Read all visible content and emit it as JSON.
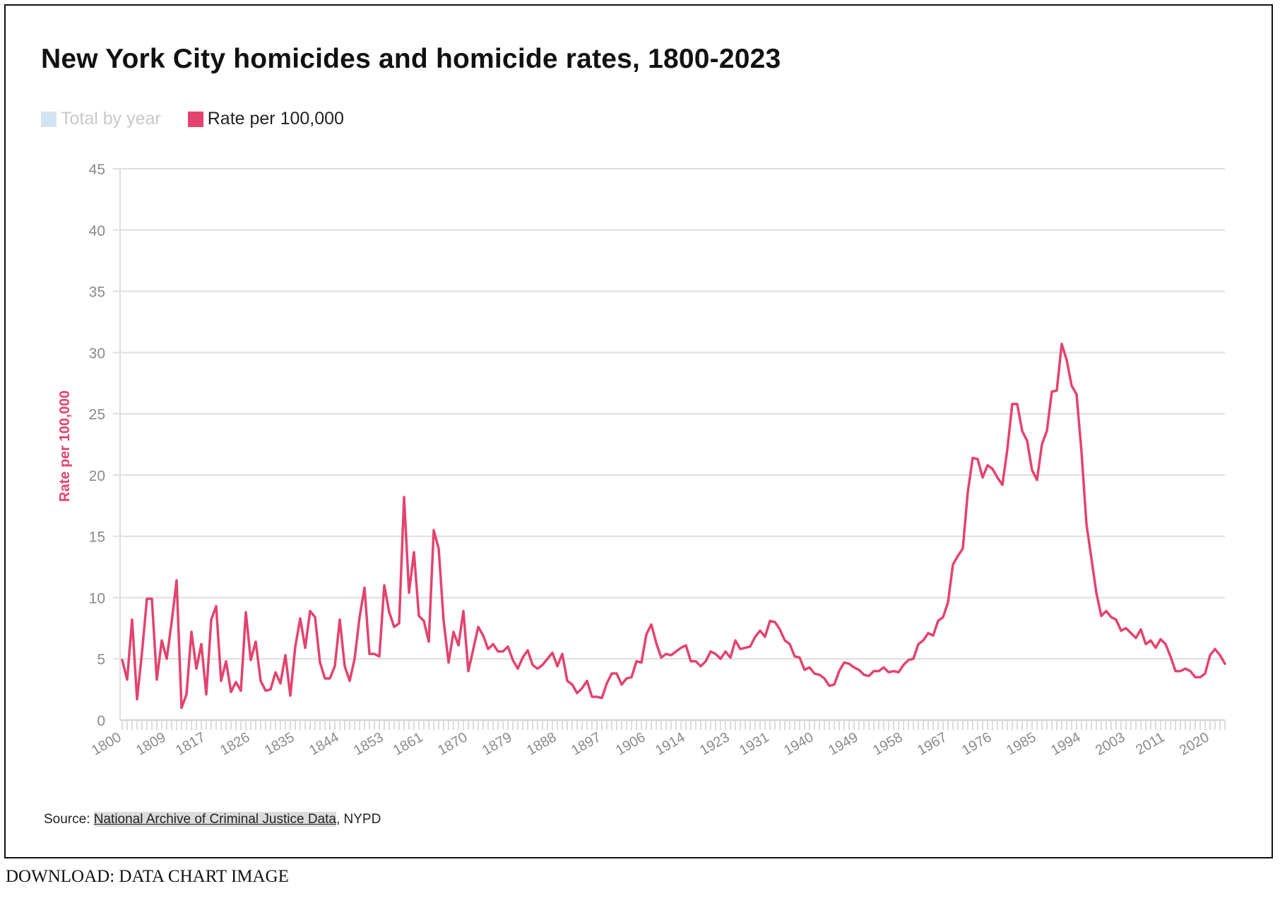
{
  "title": "New York City homicides and homicide rates, 1800-2023",
  "legend": {
    "items": [
      {
        "label": "Total by year",
        "color": "#d2e4f2",
        "active": false
      },
      {
        "label": "Rate per 100,000",
        "color": "#e3436e",
        "active": true
      }
    ]
  },
  "source": {
    "prefix": "Source: ",
    "link_text": "National Archive of Criminal Justice Data",
    "suffix": ", NYPD"
  },
  "download": {
    "label": "DOWNLOAD:",
    "data_link": "DATA",
    "chart_link": "CHART",
    "image_link": "IMAGE"
  },
  "chart_data": {
    "type": "line",
    "title": "New York City homicides and homicide rates, 1800-2023",
    "xlabel": "",
    "ylabel": "Rate per 100,000",
    "xlim": [
      1800,
      2023
    ],
    "ylim": [
      0,
      45
    ],
    "grid": true,
    "yticks": [
      0,
      5,
      10,
      15,
      20,
      25,
      30,
      35,
      40,
      45
    ],
    "xtick_labels": [
      "1800",
      "1809",
      "1817",
      "1826",
      "1835",
      "1844",
      "1853",
      "1861",
      "1870",
      "1879",
      "1888",
      "1897",
      "1906",
      "1914",
      "1923",
      "1931",
      "1940",
      "1949",
      "1958",
      "1967",
      "1976",
      "1985",
      "1994",
      "2003",
      "2011",
      "2020"
    ],
    "series": [
      {
        "name": "Rate per 100,000",
        "color": "#e3436e",
        "start_year": 1800,
        "values": [
          4.9,
          3.3,
          8.2,
          1.7,
          5.5,
          9.9,
          9.9,
          3.3,
          6.5,
          5.0,
          8.0,
          11.4,
          1.0,
          2.1,
          7.2,
          4.2,
          6.2,
          2.1,
          8.2,
          9.3,
          3.2,
          4.8,
          2.3,
          3.1,
          2.4,
          8.8,
          4.9,
          6.4,
          3.2,
          2.4,
          2.5,
          3.9,
          3.0,
          5.3,
          2.0,
          6.0,
          8.3,
          5.9,
          8.9,
          8.4,
          4.7,
          3.4,
          3.4,
          4.4,
          8.2,
          4.4,
          3.2,
          5.0,
          8.4,
          10.8,
          5.4,
          5.4,
          5.2,
          11.0,
          8.8,
          7.6,
          7.9,
          18.2,
          10.4,
          13.7,
          8.5,
          8.1,
          6.4,
          15.5,
          14.0,
          8.1,
          4.7,
          7.2,
          6.1,
          8.9,
          4.0,
          5.8,
          7.6,
          6.9,
          5.8,
          6.2,
          5.6,
          5.6,
          6.0,
          4.9,
          4.2,
          5.1,
          5.7,
          4.5,
          4.2,
          4.5,
          5.0,
          5.5,
          4.4,
          5.4,
          3.2,
          2.9,
          2.2,
          2.6,
          3.2,
          1.9,
          1.9,
          1.8,
          3.0,
          3.8,
          3.8,
          2.9,
          3.4,
          3.5,
          4.8,
          4.7,
          7.0,
          7.8,
          6.3,
          5.1,
          5.4,
          5.3,
          5.6,
          5.9,
          6.1,
          4.8,
          4.8,
          4.4,
          4.8,
          5.6,
          5.4,
          5.0,
          5.6,
          5.1,
          6.5,
          5.8,
          5.9,
          6.0,
          6.8,
          7.3,
          6.8,
          8.1,
          8.0,
          7.4,
          6.5,
          6.2,
          5.2,
          5.1,
          4.1,
          4.3,
          3.8,
          3.7,
          3.4,
          2.8,
          2.9,
          4.0,
          4.7,
          4.6,
          4.3,
          4.1,
          3.7,
          3.6,
          4.0,
          4.0,
          4.3,
          3.9,
          4.0,
          3.9,
          4.5,
          4.9,
          5.0,
          6.2,
          6.5,
          7.1,
          6.9,
          8.1,
          8.4,
          9.6,
          12.7,
          13.4,
          14.0,
          18.6,
          21.4,
          21.3,
          19.8,
          20.8,
          20.5,
          19.8,
          19.2,
          22.1,
          25.8,
          25.8,
          23.6,
          22.8,
          20.4,
          19.6,
          22.5,
          23.6,
          26.8,
          26.9,
          30.7,
          29.4,
          27.3,
          26.6,
          21.9,
          16.0,
          13.2,
          10.4,
          8.5,
          8.9,
          8.4,
          8.2,
          7.3,
          7.5,
          7.1,
          6.7,
          7.4,
          6.2,
          6.5,
          5.9,
          6.6,
          6.2,
          5.2,
          4.0,
          4.0,
          4.2,
          4.0,
          3.5,
          3.5,
          3.8,
          5.3,
          5.8,
          5.3,
          4.6
        ]
      }
    ]
  }
}
